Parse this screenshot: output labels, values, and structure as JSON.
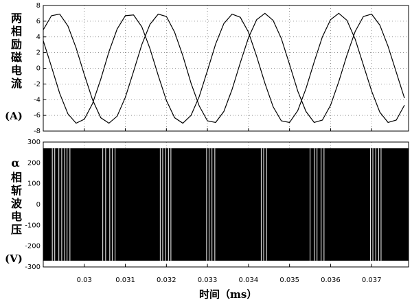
{
  "chart_data": [
    {
      "type": "line",
      "ylabel": "两相励磁电流",
      "ylabel_unit": "(A)",
      "x": [
        0.029,
        0.0292,
        0.0294,
        0.0296,
        0.0298,
        0.03,
        0.0302,
        0.0304,
        0.0306,
        0.0308,
        0.031,
        0.0312,
        0.0314,
        0.0316,
        0.0318,
        0.032,
        0.0322,
        0.0324,
        0.0326,
        0.0328,
        0.033,
        0.0332,
        0.0334,
        0.0336,
        0.0338,
        0.034,
        0.0342,
        0.0344,
        0.0346,
        0.0348,
        0.035,
        0.0352,
        0.0354,
        0.0356,
        0.0358,
        0.036,
        0.0362,
        0.0364,
        0.0366,
        0.0368,
        0.037,
        0.0372,
        0.0374,
        0.0376,
        0.0378
      ],
      "series": [
        {
          "color": "#000000",
          "values": [
            4.9,
            6.7,
            6.9,
            5.4,
            2.6,
            -0.8,
            -4.0,
            -6.3,
            -7.0,
            -6.1,
            -3.7,
            -0.4,
            3.0,
            5.6,
            6.9,
            6.6,
            4.6,
            1.6,
            -1.9,
            -4.8,
            -6.7,
            -6.9,
            -5.5,
            -2.7,
            0.7,
            3.9,
            6.2,
            7.0,
            6.1,
            3.8,
            0.5,
            -2.9,
            -5.5,
            -6.9,
            -6.6,
            -4.7,
            -1.7,
            1.7,
            4.7,
            6.6,
            6.9,
            5.5,
            2.8,
            -0.5,
            -3.8
          ]
        },
        {
          "color": "#000000",
          "values": [
            3.5,
            0.2,
            -3.2,
            -5.8,
            -7.0,
            -6.5,
            -4.5,
            -1.4,
            2.1,
            5.0,
            6.7,
            6.8,
            5.3,
            2.5,
            -0.9,
            -4.1,
            -6.3,
            -7.0,
            -6.0,
            -3.6,
            -0.3,
            3.1,
            5.7,
            6.9,
            6.5,
            4.6,
            1.5,
            -1.9,
            -4.9,
            -6.7,
            -6.9,
            -5.4,
            -2.6,
            0.8,
            4.0,
            6.2,
            7.0,
            6.1,
            3.7,
            0.4,
            -2.9,
            -5.6,
            -6.9,
            -6.6,
            -4.7
          ]
        }
      ],
      "xlim": [
        0.029,
        0.0379
      ],
      "xticks": [
        0.03,
        0.031,
        0.032,
        0.033,
        0.034,
        0.035,
        0.036,
        0.037
      ],
      "ylim": [
        -8,
        8
      ],
      "yticks": [
        -8,
        -6,
        -4,
        -2,
        0,
        2,
        4,
        6,
        8
      ],
      "grid": true
    },
    {
      "type": "band",
      "ylabel": "α相斩波电压",
      "ylabel_unit": "(V)",
      "xlabel": "时间（ms）",
      "x": [
        0.029,
        0.0379
      ],
      "upper": [
        270,
        270
      ],
      "lower": [
        -270,
        -270
      ],
      "color": "#000000",
      "gaps": [
        0.02922,
        0.02928,
        0.02938,
        0.02945,
        0.02952,
        0.02958,
        0.02965,
        0.03045,
        0.03052,
        0.03062,
        0.03068,
        0.03075,
        0.03185,
        0.03191,
        0.03198,
        0.03205,
        0.03211,
        0.03298,
        0.03304,
        0.03311,
        0.03318,
        0.03431,
        0.03437,
        0.03444,
        0.0355,
        0.0356,
        0.03567,
        0.03577,
        0.03584,
        0.03697,
        0.03703,
        0.0371,
        0.03717,
        0.03723
      ],
      "gap_color": "#ffffff",
      "xlim": [
        0.029,
        0.0379
      ],
      "xticks": [
        0.03,
        0.031,
        0.032,
        0.033,
        0.034,
        0.035,
        0.036,
        0.037
      ],
      "ylim": [
        -300,
        300
      ],
      "yticks": [
        -300,
        -200,
        -100,
        0,
        100,
        200,
        300
      ],
      "grid": true
    }
  ]
}
